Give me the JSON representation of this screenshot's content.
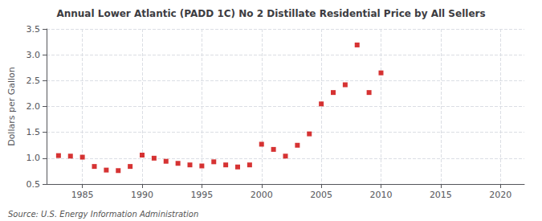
{
  "chart_data": {
    "type": "scatter",
    "title": "Annual Lower Atlantic (PADD 1C) No 2 Distillate Residential Price by All Sellers",
    "ylabel": "Dollars per Gallon",
    "annotations": [
      "Source: U.S. Energy Information Administration"
    ],
    "x": [
      1983,
      1984,
      1985,
      1986,
      1987,
      1988,
      1989,
      1990,
      1991,
      1992,
      1993,
      1994,
      1995,
      1996,
      1997,
      1998,
      1999,
      2000,
      2001,
      2002,
      2003,
      2004,
      2005,
      2006,
      2007,
      2008,
      2009,
      2010
    ],
    "values": [
      1.05,
      1.04,
      1.02,
      0.84,
      0.77,
      0.76,
      0.84,
      1.06,
      1.0,
      0.94,
      0.9,
      0.87,
      0.85,
      0.93,
      0.87,
      0.83,
      0.87,
      1.27,
      1.17,
      1.04,
      1.25,
      1.47,
      2.05,
      2.27,
      2.42,
      3.19,
      2.27,
      2.65
    ],
    "color": "#cc0000",
    "marker": "square",
    "xlim": [
      1982,
      2022
    ],
    "ylim": [
      0.5,
      3.5
    ],
    "xticks": [
      1985,
      1990,
      1995,
      2000,
      2005,
      2010,
      2015,
      2020
    ],
    "yticks": [
      0.5,
      {
        "value": 1.0,
        "label": "1.0"
      },
      1.5,
      {
        "value": 2.0,
        "label": "2.0"
      },
      2.5,
      {
        "value": 3.0,
        "label": "3.0"
      },
      3.5
    ],
    "grid": true
  }
}
